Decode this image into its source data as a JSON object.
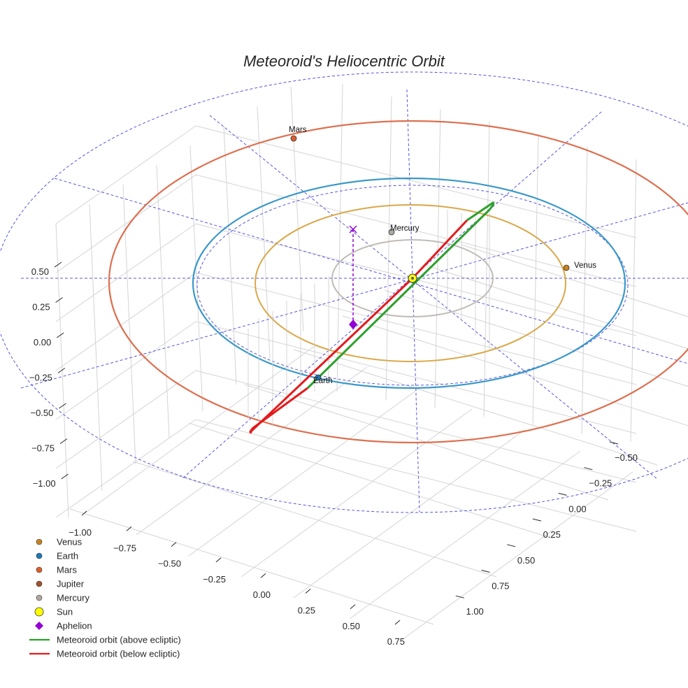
{
  "chart_data": {
    "type": "scatter3d",
    "title": "Meteoroid's Heliocentric Orbit",
    "xlabel": "",
    "ylabel": "",
    "zlabel": "",
    "x_ticks": [
      "−1.00",
      "−0.75",
      "−0.50",
      "−0.25",
      "0.00",
      "0.25",
      "0.50",
      "0.75"
    ],
    "y_ticks": [
      "−0.50",
      "−0.25",
      "0.00",
      "0.25",
      "0.50",
      "0.75",
      "1.00"
    ],
    "z_ticks": [
      "0.50",
      "0.25",
      "0.00",
      "−0.25",
      "−0.50",
      "−0.75",
      "−1.00"
    ],
    "grid": true,
    "legend_position": "bottom-left",
    "colors": {
      "venus": "#c8821e",
      "earth": "#1f77b4",
      "mars": "#d95f2b",
      "jupiter": "#a0522d",
      "mercury": "#b0a8a0",
      "sun": "#ffff00",
      "aphelion": "#9400d3",
      "above": "#2ca02c",
      "below": "#e41a1c",
      "ecliptic": "#5555dd",
      "venus_orbit": "#d9a84a",
      "earth_orbit": "#3a98c8",
      "mars_orbit": "#dd7050",
      "mercury_orbit": "#c0bbb6"
    },
    "orbits_au": [
      {
        "name": "Mercury",
        "radius": 0.39
      },
      {
        "name": "Venus",
        "radius": 0.72
      },
      {
        "name": "Earth",
        "radius": 1.0
      },
      {
        "name": "Mars",
        "radius": 1.52
      }
    ],
    "planet_labels": [
      "Mars",
      "Mercury",
      "Venus",
      "Earth"
    ],
    "legend": [
      {
        "label": "Venus",
        "kind": "marker",
        "color_key": "venus"
      },
      {
        "label": "Earth",
        "kind": "marker",
        "color_key": "earth"
      },
      {
        "label": "Mars",
        "kind": "marker",
        "color_key": "mars"
      },
      {
        "label": "Jupiter",
        "kind": "marker",
        "color_key": "jupiter"
      },
      {
        "label": "Mercury",
        "kind": "marker",
        "color_key": "mercury"
      },
      {
        "label": "Sun",
        "kind": "sun",
        "color_key": "sun"
      },
      {
        "label": "Aphelion",
        "kind": "diamond",
        "color_key": "aphelion"
      },
      {
        "label": "Meteoroid orbit (above ecliptic)",
        "kind": "line",
        "color_key": "above"
      },
      {
        "label": "Meteoroid orbit (below ecliptic)",
        "kind": "line",
        "color_key": "below"
      }
    ]
  }
}
